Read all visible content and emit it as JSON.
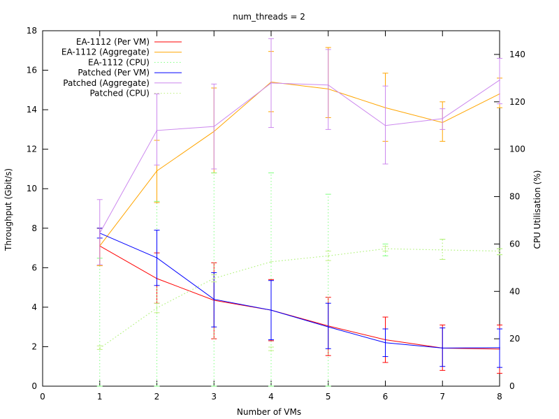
{
  "chart_data": {
    "type": "line",
    "title": "num_threads = 2",
    "xlabel": "Number of VMs",
    "ylabel": "Throughput (Gbit/s)",
    "y2label": "CPU Utilisation (%)",
    "xlim": [
      0,
      8
    ],
    "ylim": [
      0,
      18
    ],
    "y2lim": [
      0,
      150
    ],
    "x_ticks": [
      0,
      1,
      2,
      3,
      4,
      5,
      6,
      7,
      8
    ],
    "y_ticks": [
      0,
      2,
      4,
      6,
      8,
      10,
      12,
      14,
      16,
      18
    ],
    "y2_ticks": [
      0,
      20,
      40,
      60,
      80,
      100,
      120,
      140
    ],
    "legend_position": "top-left",
    "series": [
      {
        "name": "EA-1112 (Per VM)",
        "axis": "y",
        "color": "#ff0000",
        "dash": "solid",
        "x": [
          1,
          2,
          3,
          4,
          5,
          6,
          7,
          8
        ],
        "values": [
          7.1,
          5.45,
          4.35,
          3.85,
          3.05,
          2.35,
          1.93,
          1.88
        ],
        "err_low": [
          6.1,
          4.2,
          2.4,
          2.3,
          1.55,
          1.2,
          0.8,
          0.65
        ],
        "err_high": [
          8.0,
          6.75,
          6.25,
          5.4,
          4.5,
          3.5,
          3.1,
          3.1
        ]
      },
      {
        "name": "EA-1112 (Aggregate)",
        "axis": "y",
        "color": "#ffa500",
        "dash": "solid",
        "x": [
          1,
          2,
          3,
          4,
          5,
          6,
          7,
          8
        ],
        "values": [
          7.1,
          10.9,
          12.9,
          15.4,
          15.05,
          14.1,
          13.35,
          14.8
        ],
        "err_low": [
          6.1,
          9.3,
          10.8,
          13.9,
          13.6,
          12.4,
          12.4,
          14.1
        ],
        "err_high": [
          8.0,
          12.45,
          15.1,
          16.95,
          17.15,
          15.85,
          14.4,
          15.6
        ]
      },
      {
        "name": "EA-1112 (CPU)",
        "axis": "y2",
        "color": "#7fff7f",
        "dash": "dotted",
        "x": [
          1,
          2,
          3,
          4,
          5,
          6,
          7,
          8
        ],
        "values": [
          16,
          33,
          45.5,
          52.5,
          55,
          58,
          57.5,
          57
        ],
        "err_low": [
          0,
          0,
          0,
          0,
          0,
          55,
          53.5,
          55.5
        ],
        "err_high": [
          54,
          78,
          90,
          90,
          81,
          60,
          62,
          58
        ]
      },
      {
        "name": "Patched (Per VM)",
        "axis": "y",
        "color": "#0000ff",
        "dash": "solid",
        "x": [
          1,
          2,
          3,
          4,
          5,
          6,
          7,
          8
        ],
        "values": [
          7.75,
          6.5,
          4.4,
          3.85,
          3.0,
          2.2,
          1.93,
          1.95
        ],
        "err_low": [
          7.5,
          5.1,
          3.0,
          2.35,
          1.9,
          1.5,
          1.0,
          0.95
        ],
        "err_high": [
          8.0,
          7.9,
          5.75,
          5.35,
          4.2,
          2.9,
          2.95,
          2.9
        ]
      },
      {
        "name": "Patched (Aggregate)",
        "axis": "y",
        "color": "#cc88ee",
        "dash": "solid",
        "x": [
          1,
          2,
          3,
          4,
          5,
          6,
          7,
          8
        ],
        "values": [
          7.75,
          12.95,
          13.15,
          15.35,
          15.25,
          13.2,
          13.55,
          15.5
        ],
        "err_low": [
          6.15,
          11.2,
          11.0,
          13.1,
          13.0,
          11.25,
          13.0,
          14.3
        ],
        "err_high": [
          9.45,
          14.8,
          15.3,
          17.6,
          17.05,
          15.2,
          14.05,
          16.6
        ]
      },
      {
        "name": "Patched (CPU)",
        "axis": "y2",
        "color": "#bfef7f",
        "dash": "dotted",
        "x": [
          1,
          2,
          3,
          4,
          5,
          6,
          7,
          8
        ],
        "values": [
          16,
          33,
          45.5,
          52.5,
          55,
          58,
          57.5,
          57
        ],
        "err_low": [
          15.5,
          31,
          44,
          15,
          53,
          57,
          53.5,
          55.5
        ],
        "err_high": [
          17,
          35,
          47,
          16.5,
          57,
          59,
          62,
          58
        ]
      }
    ]
  }
}
